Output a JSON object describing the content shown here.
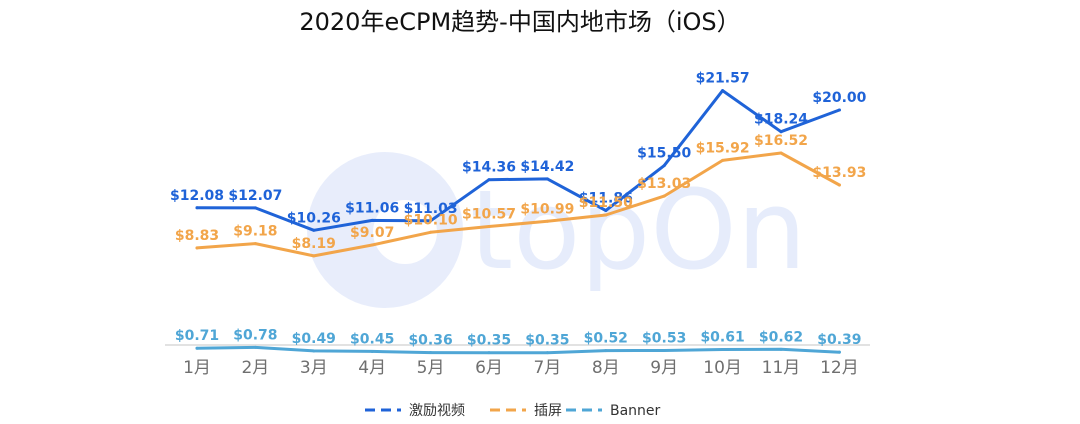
{
  "chart_data": {
    "type": "line",
    "title": "2020年eCPM趋势-中国内地市场（iOS）",
    "categories": [
      "1月",
      "2月",
      "3月",
      "4月",
      "5月",
      "6月",
      "7月",
      "8月",
      "9月",
      "10月",
      "11月",
      "12月"
    ],
    "series": [
      {
        "name": "激励视频",
        "color": "#1f63d8",
        "values": [
          12.08,
          12.07,
          10.26,
          11.06,
          11.03,
          14.36,
          14.42,
          11.86,
          15.5,
          21.57,
          18.24,
          20.0
        ],
        "labels": [
          "$12.08",
          "$12.07",
          "$10.26",
          "$11.06",
          "$11.03",
          "$14.36",
          "$14.42",
          "$11.86",
          "$15.50",
          "$21.57",
          "$18.24",
          "$20.00"
        ]
      },
      {
        "name": "插屏",
        "color": "#f2a54a",
        "values": [
          8.83,
          9.18,
          8.19,
          9.07,
          10.1,
          10.57,
          10.99,
          11.5,
          13.03,
          15.92,
          16.52,
          13.93
        ],
        "labels": [
          "$8.83",
          "$9.18",
          "$8.19",
          "$9.07",
          "$10.10",
          "$10.57",
          "$10.99",
          "$11.50",
          "$13.03",
          "$15.92",
          "$16.52",
          "$13.93"
        ]
      },
      {
        "name": "Banner",
        "color": "#4fa6d6",
        "values": [
          0.71,
          0.78,
          0.49,
          0.45,
          0.36,
          0.35,
          0.35,
          0.52,
          0.53,
          0.61,
          0.62,
          0.39
        ],
        "labels": [
          "$0.71",
          "$0.78",
          "$0.49",
          "$0.45",
          "$0.36",
          "$0.35",
          "$0.35",
          "$0.52",
          "$0.53",
          "$0.61",
          "$0.62",
          "$0.39"
        ]
      }
    ],
    "ylim": [
      0,
      24
    ],
    "grid": false,
    "legend": "bottom",
    "watermark": "topOn"
  }
}
